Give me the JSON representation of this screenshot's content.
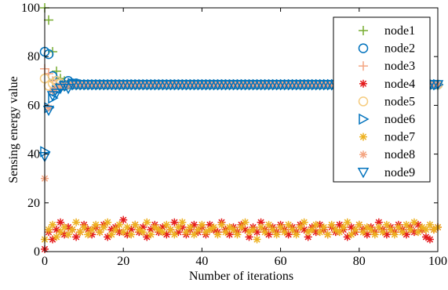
{
  "chart_data": {
    "type": "scatter",
    "xlabel": "Number of iterations",
    "ylabel": "Sensing energy value",
    "xlim": [
      0,
      100
    ],
    "ylim": [
      0,
      100
    ],
    "xticks": [
      0,
      20,
      40,
      60,
      80,
      100
    ],
    "yticks": [
      0,
      20,
      40,
      60,
      80,
      100
    ],
    "grid": false,
    "legend_position": "top-right",
    "converged_value": 68.5,
    "series": [
      {
        "name": "node1",
        "marker": "plus",
        "color": "#77AC30",
        "points": [
          [
            0,
            100
          ],
          [
            1,
            95
          ],
          [
            2,
            82
          ],
          [
            3,
            74
          ],
          [
            4,
            71
          ],
          [
            5,
            70
          ],
          [
            6,
            69
          ],
          [
            7,
            69
          ]
        ]
      },
      {
        "name": "node2",
        "marker": "circle",
        "color": "#0072BD",
        "points": [
          [
            0,
            82
          ],
          [
            1,
            81
          ],
          [
            2,
            72
          ],
          [
            3,
            70
          ],
          [
            4,
            69
          ],
          [
            5,
            68.5
          ],
          [
            6,
            70
          ],
          [
            7,
            69
          ],
          [
            8,
            69
          ]
        ]
      },
      {
        "name": "node3",
        "marker": "plus",
        "color": "#F4A582",
        "points": [
          [
            0,
            75
          ],
          [
            1,
            73
          ],
          [
            2,
            70
          ],
          [
            3,
            69
          ],
          [
            4,
            69
          ],
          [
            5,
            68
          ],
          [
            6,
            69
          ]
        ]
      },
      {
        "name": "node4",
        "marker": "asterisk",
        "color": "#E41A1C",
        "points": [
          [
            0,
            1
          ],
          [
            1,
            8
          ],
          [
            2,
            5
          ],
          [
            3,
            9
          ],
          [
            4,
            12
          ],
          [
            5,
            7
          ],
          [
            6,
            10
          ],
          [
            7,
            9
          ],
          [
            8,
            6
          ],
          [
            9,
            8
          ],
          [
            10,
            11
          ],
          [
            11,
            9
          ],
          [
            12,
            7
          ],
          [
            13,
            10
          ],
          [
            14,
            8
          ],
          [
            15,
            11
          ],
          [
            16,
            6
          ],
          [
            17,
            9
          ],
          [
            18,
            10
          ],
          [
            19,
            8
          ],
          [
            20,
            13
          ],
          [
            21,
            7
          ],
          [
            22,
            9
          ],
          [
            23,
            11
          ],
          [
            24,
            8
          ],
          [
            25,
            10
          ],
          [
            26,
            6
          ],
          [
            27,
            9
          ],
          [
            28,
            11
          ],
          [
            29,
            8
          ],
          [
            30,
            10
          ],
          [
            31,
            7
          ],
          [
            32,
            9
          ],
          [
            33,
            12
          ],
          [
            34,
            8
          ],
          [
            35,
            10
          ],
          [
            36,
            7
          ],
          [
            37,
            9
          ],
          [
            38,
            11
          ],
          [
            39,
            8
          ],
          [
            40,
            10
          ],
          [
            41,
            7
          ],
          [
            42,
            11
          ],
          [
            43,
            9
          ],
          [
            44,
            8
          ],
          [
            45,
            12
          ],
          [
            46,
            9
          ],
          [
            47,
            7
          ],
          [
            48,
            10
          ],
          [
            49,
            8
          ],
          [
            50,
            11
          ],
          [
            51,
            9
          ],
          [
            52,
            6
          ],
          [
            53,
            10
          ],
          [
            54,
            8
          ],
          [
            55,
            12
          ],
          [
            56,
            9
          ],
          [
            57,
            7
          ],
          [
            58,
            10
          ],
          [
            59,
            8
          ],
          [
            60,
            11
          ],
          [
            61,
            9
          ],
          [
            62,
            7
          ],
          [
            63,
            10
          ],
          [
            64,
            8
          ],
          [
            65,
            11
          ],
          [
            66,
            9
          ],
          [
            67,
            6
          ],
          [
            68,
            10
          ],
          [
            69,
            8
          ],
          [
            70,
            11
          ],
          [
            71,
            9
          ],
          [
            72,
            7
          ],
          [
            73,
            10
          ],
          [
            74,
            8
          ],
          [
            75,
            11
          ],
          [
            76,
            9
          ],
          [
            77,
            6
          ],
          [
            78,
            10
          ],
          [
            79,
            8
          ],
          [
            80,
            11
          ],
          [
            81,
            9
          ],
          [
            82,
            7
          ],
          [
            83,
            10
          ],
          [
            84,
            8
          ],
          [
            85,
            12
          ],
          [
            86,
            9
          ],
          [
            87,
            7
          ],
          [
            88,
            10
          ],
          [
            89,
            8
          ],
          [
            90,
            11
          ],
          [
            91,
            9
          ],
          [
            92,
            7
          ],
          [
            93,
            10
          ],
          [
            94,
            8
          ],
          [
            95,
            11
          ],
          [
            96,
            9
          ],
          [
            97,
            6
          ],
          [
            98,
            5
          ],
          [
            99,
            9
          ],
          [
            100,
            10
          ]
        ]
      },
      {
        "name": "node5",
        "marker": "circle",
        "color": "#F5CC7F",
        "points": [
          [
            0,
            71
          ],
          [
            1,
            68
          ],
          [
            2,
            69
          ],
          [
            3,
            70
          ],
          [
            4,
            69
          ],
          [
            5,
            68
          ]
        ]
      },
      {
        "name": "node6",
        "marker": "triangle-right",
        "color": "#0072BD",
        "points": [
          [
            0,
            41
          ],
          [
            1,
            59
          ],
          [
            2,
            63
          ],
          [
            3,
            66
          ],
          [
            4,
            67
          ],
          [
            5,
            68
          ],
          [
            6,
            68
          ],
          [
            7,
            69
          ]
        ]
      },
      {
        "name": "node7",
        "marker": "asterisk",
        "color": "#EDB120",
        "points": [
          [
            0,
            5
          ],
          [
            1,
            9
          ],
          [
            2,
            11
          ],
          [
            3,
            6
          ],
          [
            4,
            8
          ],
          [
            5,
            10
          ],
          [
            6,
            7
          ],
          [
            7,
            9
          ],
          [
            8,
            12
          ],
          [
            9,
            8
          ],
          [
            10,
            10
          ],
          [
            11,
            7
          ],
          [
            12,
            9
          ],
          [
            13,
            11
          ],
          [
            14,
            8
          ],
          [
            15,
            10
          ],
          [
            16,
            12
          ],
          [
            17,
            7
          ],
          [
            18,
            9
          ],
          [
            19,
            11
          ],
          [
            20,
            8
          ],
          [
            21,
            10
          ],
          [
            22,
            7
          ],
          [
            23,
            11
          ],
          [
            24,
            9
          ],
          [
            25,
            8
          ],
          [
            26,
            12
          ],
          [
            27,
            7
          ],
          [
            28,
            10
          ],
          [
            29,
            9
          ],
          [
            30,
            8
          ],
          [
            31,
            11
          ],
          [
            32,
            9
          ],
          [
            33,
            7
          ],
          [
            34,
            10
          ],
          [
            35,
            12
          ],
          [
            36,
            8
          ],
          [
            37,
            10
          ],
          [
            38,
            7
          ],
          [
            39,
            9
          ],
          [
            40,
            11
          ],
          [
            41,
            8
          ],
          [
            42,
            9
          ],
          [
            43,
            10
          ],
          [
            44,
            7
          ],
          [
            45,
            11
          ],
          [
            46,
            8
          ],
          [
            47,
            10
          ],
          [
            48,
            9
          ],
          [
            49,
            7
          ],
          [
            50,
            10
          ],
          [
            51,
            12
          ],
          [
            52,
            8
          ],
          [
            53,
            9
          ],
          [
            54,
            5
          ],
          [
            55,
            10
          ],
          [
            56,
            8
          ],
          [
            57,
            11
          ],
          [
            58,
            9
          ],
          [
            59,
            7
          ],
          [
            60,
            10
          ],
          [
            61,
            8
          ],
          [
            62,
            11
          ],
          [
            63,
            9
          ],
          [
            64,
            7
          ],
          [
            65,
            10
          ],
          [
            66,
            12
          ],
          [
            67,
            8
          ],
          [
            68,
            9
          ],
          [
            69,
            11
          ],
          [
            70,
            8
          ],
          [
            71,
            10
          ],
          [
            72,
            7
          ],
          [
            73,
            11
          ],
          [
            74,
            9
          ],
          [
            75,
            8
          ],
          [
            76,
            10
          ],
          [
            77,
            12
          ],
          [
            78,
            7
          ],
          [
            79,
            9
          ],
          [
            80,
            11
          ],
          [
            81,
            8
          ],
          [
            82,
            10
          ],
          [
            83,
            9
          ],
          [
            84,
            7
          ],
          [
            85,
            10
          ],
          [
            86,
            8
          ],
          [
            87,
            11
          ],
          [
            88,
            9
          ],
          [
            89,
            7
          ],
          [
            90,
            10
          ],
          [
            91,
            8
          ],
          [
            92,
            11
          ],
          [
            93,
            9
          ],
          [
            94,
            12
          ],
          [
            95,
            8
          ],
          [
            96,
            10
          ],
          [
            97,
            9
          ],
          [
            98,
            11
          ],
          [
            99,
            9
          ],
          [
            100,
            10
          ]
        ]
      },
      {
        "name": "node8",
        "marker": "asterisk",
        "color": "#F4A582",
        "points": [
          [
            0,
            30
          ],
          [
            1,
            59
          ],
          [
            2,
            66
          ],
          [
            3,
            67
          ],
          [
            4,
            68
          ],
          [
            5,
            68
          ]
        ]
      },
      {
        "name": "node9",
        "marker": "triangle-down",
        "color": "#0072BD",
        "points": [
          [
            0,
            39
          ],
          [
            1,
            58
          ],
          [
            2,
            64
          ],
          [
            3,
            65
          ],
          [
            4,
            67
          ],
          [
            5,
            68
          ],
          [
            6,
            67
          ]
        ]
      }
    ]
  }
}
